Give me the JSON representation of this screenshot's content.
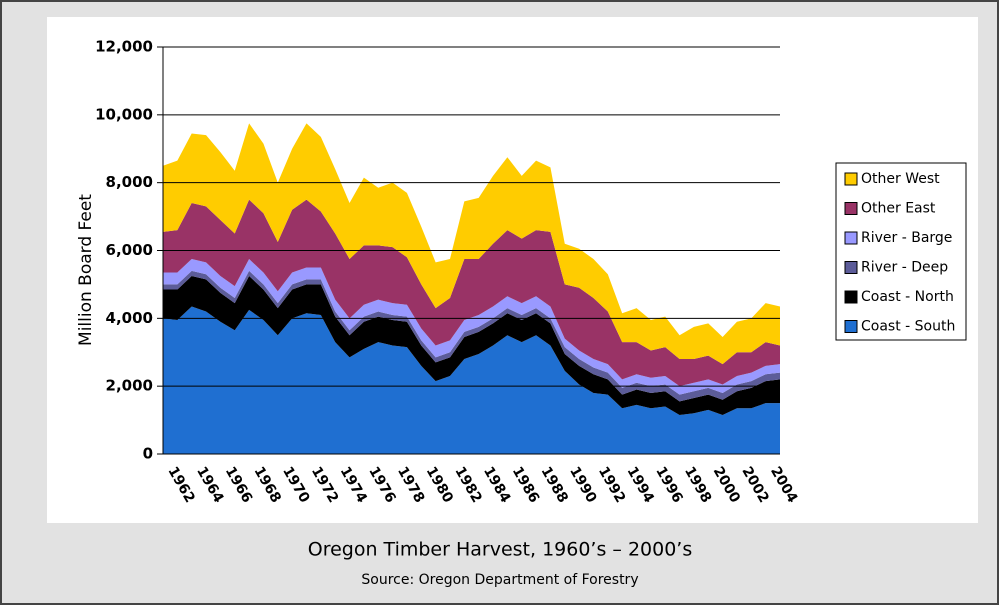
{
  "chart_data": {
    "type": "stacked_area",
    "title": "Oregon Timber Harvest, 1960’s – 2000’s",
    "subtitle": "Source:  Oregon Department of Forestry",
    "y_label": "Million Board Feet",
    "categories": [
      null,
      "1962",
      null,
      "1964",
      null,
      "1966",
      null,
      "1968",
      null,
      "1970",
      null,
      "1972",
      null,
      "1974",
      null,
      "1976",
      null,
      "1978",
      null,
      "1980",
      null,
      "1982",
      null,
      "1984",
      null,
      "1986",
      null,
      "1988",
      null,
      "1990",
      null,
      "1992",
      null,
      "1994",
      null,
      "1996",
      null,
      "1998",
      null,
      "2000",
      null,
      "2002",
      null,
      "2004"
    ],
    "ylim": [
      0,
      12000
    ],
    "yticks": [
      0,
      {
        "value": 2000,
        "label": "2,000"
      },
      {
        "value": 4000,
        "label": "4,000"
      },
      {
        "value": 6000,
        "label": "6,000"
      },
      {
        "value": 8000,
        "label": "8,000"
      },
      {
        "value": 10000,
        "label": "10,000"
      },
      {
        "value": 12000,
        "label": "12,000"
      }
    ],
    "grid": true,
    "legend": "right",
    "series": [
      {
        "name": "Coast - South",
        "color": "#1f6fd1",
        "values": [
          4000,
          3950,
          4350,
          4200,
          3900,
          3650,
          4250,
          3950,
          3500,
          4000,
          4150,
          4100,
          3300,
          2850,
          3100,
          3300,
          3200,
          3150,
          2600,
          2150,
          2300,
          2800,
          2950,
          3200,
          3500,
          3300,
          3500,
          3200,
          2450,
          2050,
          1800,
          1750,
          1350,
          1450,
          1350,
          1400,
          1150,
          1200,
          1300,
          1150,
          1350,
          1350,
          1500,
          1500
        ]
      },
      {
        "name": "Coast - North",
        "color": "#000000",
        "values": [
          850,
          900,
          900,
          950,
          850,
          800,
          1000,
          900,
          800,
          850,
          850,
          900,
          750,
          650,
          800,
          750,
          750,
          750,
          600,
          550,
          550,
          650,
          650,
          650,
          650,
          650,
          650,
          650,
          500,
          550,
          550,
          450,
          400,
          450,
          450,
          450,
          400,
          450,
          450,
          450,
          500,
          600,
          650,
          700
        ]
      },
      {
        "name": "River - Deep",
        "color": "#5c5c99",
        "values": [
          150,
          150,
          150,
          150,
          150,
          150,
          150,
          150,
          150,
          150,
          150,
          150,
          150,
          150,
          150,
          150,
          150,
          150,
          150,
          150,
          150,
          150,
          150,
          150,
          150,
          150,
          150,
          150,
          200,
          200,
          200,
          200,
          200,
          200,
          200,
          200,
          200,
          200,
          200,
          200,
          200,
          200,
          200,
          200
        ]
      },
      {
        "name": "River - Barge",
        "color": "#9999ff",
        "values": [
          350,
          350,
          350,
          350,
          350,
          350,
          350,
          350,
          350,
          350,
          350,
          350,
          350,
          350,
          350,
          350,
          350,
          350,
          350,
          350,
          350,
          350,
          350,
          350,
          350,
          350,
          350,
          350,
          250,
          250,
          250,
          250,
          250,
          250,
          250,
          250,
          250,
          250,
          250,
          250,
          250,
          250,
          250,
          250
        ]
      },
      {
        "name": "Other East",
        "color": "#993366",
        "values": [
          1200,
          1250,
          1650,
          1650,
          1650,
          1550,
          1750,
          1750,
          1450,
          1850,
          2000,
          1650,
          1950,
          1750,
          1750,
          1600,
          1650,
          1400,
          1300,
          1100,
          1250,
          1800,
          1650,
          1850,
          1950,
          1900,
          1950,
          2200,
          1600,
          1850,
          1800,
          1550,
          1100,
          950,
          800,
          850,
          800,
          700,
          700,
          600,
          700,
          600,
          700,
          550
        ]
      },
      {
        "name": "Other West",
        "color": "#ffcc00",
        "values": [
          1950,
          2050,
          2050,
          2100,
          2000,
          1850,
          2250,
          2050,
          1750,
          1800,
          2250,
          2200,
          1900,
          1650,
          2000,
          1700,
          1900,
          1900,
          1700,
          1350,
          1150,
          1700,
          1800,
          2000,
          2150,
          1850,
          2050,
          1900,
          1200,
          1150,
          1150,
          1100,
          850,
          1000,
          900,
          900,
          700,
          950,
          950,
          800,
          900,
          1000,
          1150,
          1150
        ]
      }
    ]
  }
}
